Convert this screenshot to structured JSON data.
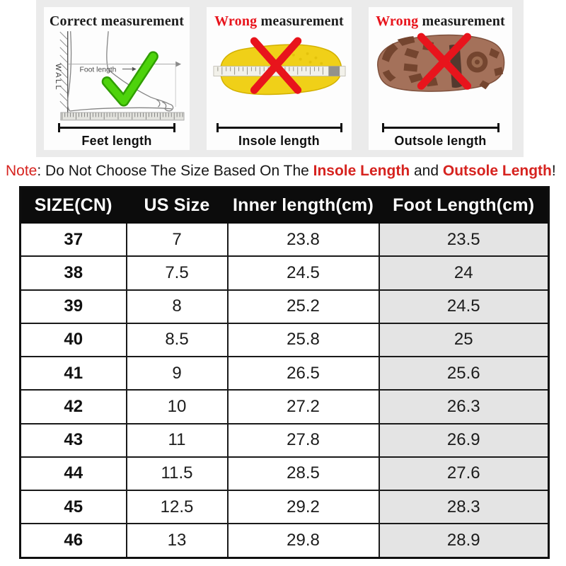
{
  "colors": {
    "accent_red": "#d6231f",
    "wrong_red": "#e8141c",
    "check_green": "#4ed30c",
    "check_green_dark": "#2f9e00",
    "insole_yellow": "#f0d018",
    "outsole_brown": "#a4715a",
    "tread_brown": "#74452f",
    "header_bg": "#0c0c0c",
    "alt_cell_bg": "#e4e4e4",
    "strip_bg": "#ebebeb"
  },
  "panels": [
    {
      "title_accent": "Correct",
      "title_rest": " measurement",
      "wall_label": "WALL",
      "measure_label": "Foot length",
      "bottom_label": "Feet length"
    },
    {
      "title_accent": "Wrong",
      "title_rest": " measurement",
      "bottom_label": "Insole length"
    },
    {
      "title_accent": "Wrong",
      "title_rest": " measurement",
      "bottom_label": "Outsole length"
    }
  ],
  "note": {
    "label": "Note",
    "sep": ": ",
    "body": "Do Not Choose The Size Based On The ",
    "em1": "Insole Length",
    "mid": " and ",
    "em2": "Outsole Length",
    "end": "!"
  },
  "table": {
    "headers": [
      "SIZE(CN)",
      "US Size",
      "Inner length(cm)",
      "Foot Length(cm)"
    ],
    "rows": [
      [
        "37",
        "7",
        "23.8",
        "23.5"
      ],
      [
        "38",
        "7.5",
        "24.5",
        "24"
      ],
      [
        "39",
        "8",
        "25.2",
        "24.5"
      ],
      [
        "40",
        "8.5",
        "25.8",
        "25"
      ],
      [
        "41",
        "9",
        "26.5",
        "25.6"
      ],
      [
        "42",
        "10",
        "27.2",
        "26.3"
      ],
      [
        "43",
        "11",
        "27.8",
        "26.9"
      ],
      [
        "44",
        "11.5",
        "28.5",
        "27.6"
      ],
      [
        "45",
        "12.5",
        "29.2",
        "28.3"
      ],
      [
        "46",
        "13",
        "29.8",
        "28.9"
      ]
    ]
  }
}
